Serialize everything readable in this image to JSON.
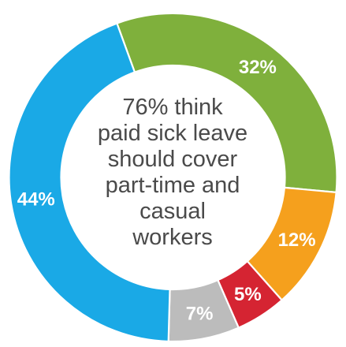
{
  "chart_data": {
    "type": "pie",
    "donut": true,
    "title": "",
    "center_text": [
      "76% think",
      "paid sick leave",
      "should cover",
      "part-time and",
      "casual",
      "workers"
    ],
    "slices": [
      {
        "label": "32%",
        "value": 32,
        "color": "#7fb03c"
      },
      {
        "label": "12%",
        "value": 12,
        "color": "#f5a01d"
      },
      {
        "label": "5%",
        "value": 5,
        "color": "#d52432"
      },
      {
        "label": "7%",
        "value": 7,
        "color": "#bcbcbc"
      },
      {
        "label": "44%",
        "value": 44,
        "color": "#1aa9e6"
      }
    ]
  }
}
